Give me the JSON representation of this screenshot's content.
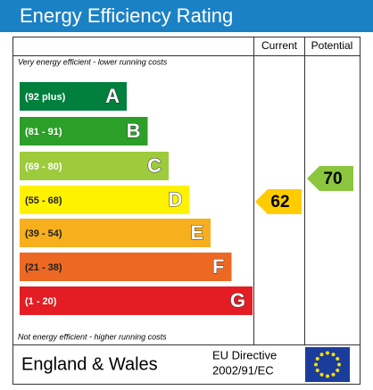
{
  "header": {
    "title": "Energy Efficiency Rating"
  },
  "columns": [
    "Current",
    "Potential"
  ],
  "top_note": "Very energy efficient - lower running costs",
  "bottom_note": "Not energy efficient - higher running costs",
  "bands": [
    {
      "range": "(92 plus)",
      "letter": "A",
      "color": "#007f3d"
    },
    {
      "range": "(81 - 91)",
      "letter": "B",
      "color": "#2c9f29"
    },
    {
      "range": "(69 - 80)",
      "letter": "C",
      "color": "#9dcb3c"
    },
    {
      "range": "(55 - 68)",
      "letter": "D",
      "color": "#fff200"
    },
    {
      "range": "(39 - 54)",
      "letter": "E",
      "color": "#f7af1d"
    },
    {
      "range": "(21 - 38)",
      "letter": "F",
      "color": "#ed6823"
    },
    {
      "range": "(1 - 20)",
      "letter": "G",
      "color": "#e31d23"
    }
  ],
  "current": "62",
  "potential": "70",
  "footer": {
    "region": "England & Wales",
    "directive_line1": "EU Directive",
    "directive_line2": "2002/91/EC"
  }
}
